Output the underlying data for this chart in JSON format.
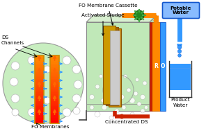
{
  "bg_color": "#ffffff",
  "light_green": "#c8eec0",
  "green_tank_fill": "#c0e8b8",
  "orange_color": "#ff8800",
  "red_color": "#cc2200",
  "blue_color": "#3399ff",
  "dark_blue": "#1155cc",
  "membrane_gold": "#cc8800",
  "membrane_brown": "#8B5500",
  "membrane_light": "#e8c860",
  "membrane_gray": "#aaaaaa",
  "pump_green": "#228822",
  "potable_box_bg": "#66aaff",
  "tank_border": "#888888",
  "labels": {
    "fo_cassette": "FO Membrane Cassette",
    "act_sludge": "Activated Sludge",
    "ds_channels": "DS\nChannels",
    "fo_membranes": "FO Membranes",
    "conc_ds": "Concentrated DS",
    "potable": "Potable\nWater",
    "product": "Product\nWater",
    "ro_r": "R",
    "ro_o": "O"
  },
  "figsize": [
    2.96,
    1.89
  ],
  "dpi": 100
}
